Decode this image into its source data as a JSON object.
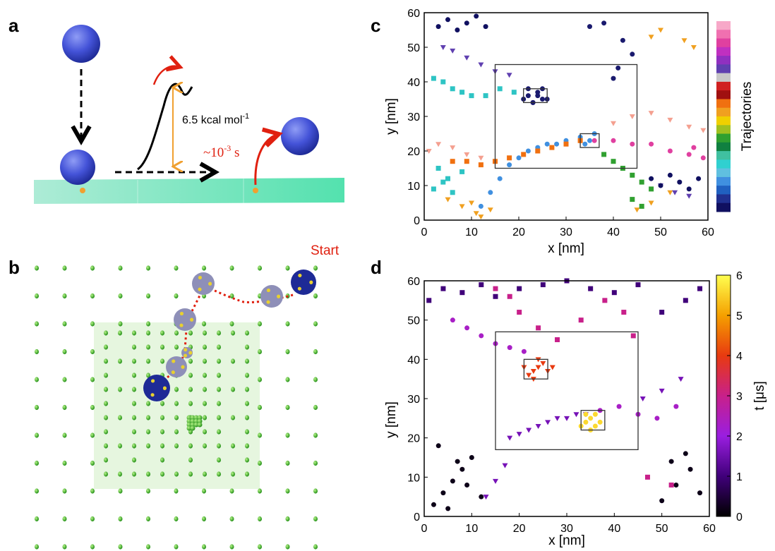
{
  "panel_labels": {
    "a": "a",
    "b": "b",
    "c": "c",
    "d": "d"
  },
  "diagram_a": {
    "energy": "6.5 kcal mol",
    "energy_sup": "-1",
    "time": "~10",
    "time_sup": "-3",
    "time_unit": " s"
  },
  "diagram_b": {
    "start": "Start"
  },
  "chart_data": [
    {
      "type": "scatter",
      "xlabel": "x [nm]",
      "ylabel": "y [nm]",
      "xlim": [
        0,
        60
      ],
      "ylim": [
        0,
        60
      ],
      "xticks": [
        0,
        10,
        20,
        30,
        40,
        50,
        60
      ],
      "yticks": [
        0,
        10,
        20,
        30,
        40,
        50,
        60
      ],
      "colorbar_label": "Trajectories",
      "colorbar_colors": [
        "#f7a8c8",
        "#f070b0",
        "#e040a0",
        "#c030c0",
        "#9030c0",
        "#6040b0",
        "#c8c8c8",
        "#d02020",
        "#a01010",
        "#f07010",
        "#f0a020",
        "#f0d000",
        "#a0c020",
        "#30a030",
        "#108040",
        "#40c0a0",
        "#30d0d0",
        "#60c0e0",
        "#4090e0",
        "#2060c0",
        "#203090",
        "#101060"
      ],
      "boxes": [
        {
          "x": [
            15,
            45
          ],
          "y": [
            15,
            45
          ]
        },
        {
          "x": [
            21,
            26
          ],
          "y": [
            34,
            38
          ]
        },
        {
          "x": [
            33,
            37
          ],
          "y": [
            21,
            25
          ]
        }
      ],
      "series": [
        {
          "color": "#1a1a6e",
          "x": [
            21,
            22,
            23,
            24,
            25,
            22,
            24,
            26,
            23,
            25,
            35,
            38,
            42,
            44,
            41,
            40
          ],
          "y": [
            35,
            36,
            34,
            37,
            38,
            38,
            36,
            35,
            34,
            35,
            56,
            57,
            52,
            48,
            44,
            41
          ]
        },
        {
          "color": "#2ec4c4",
          "x": [
            2,
            4,
            6,
            8,
            10,
            13,
            16,
            19,
            3,
            5,
            8,
            2,
            4,
            6
          ],
          "y": [
            41,
            40,
            38,
            37,
            36,
            36,
            38,
            37,
            15,
            12,
            14,
            9,
            11,
            8
          ]
        },
        {
          "color": "#f0a020",
          "x": [
            5,
            8,
            10,
            11,
            14,
            12,
            45,
            48,
            52,
            55,
            57,
            48,
            50
          ],
          "y": [
            6,
            4,
            5,
            2,
            3,
            1,
            3,
            5,
            8,
            52,
            50,
            53,
            55
          ]
        },
        {
          "color": "#4090e0",
          "x": [
            12,
            14,
            16,
            18,
            20,
            22,
            24,
            26,
            28,
            30,
            33,
            35,
            36,
            34
          ],
          "y": [
            4,
            8,
            12,
            16,
            18,
            20,
            21,
            22,
            22,
            23,
            24,
            23,
            25,
            22
          ]
        },
        {
          "color": "#f07010",
          "x": [
            6,
            9,
            12,
            15,
            18,
            21,
            24,
            27,
            30,
            33
          ],
          "y": [
            17,
            17,
            16,
            17,
            18,
            19,
            20,
            21,
            22,
            23
          ]
        },
        {
          "color": "#f4a090",
          "x": [
            1,
            3,
            6,
            9,
            12,
            40,
            44,
            48,
            52,
            56,
            59
          ],
          "y": [
            20,
            22,
            21,
            19,
            18,
            28,
            30,
            31,
            29,
            27,
            26
          ]
        },
        {
          "color": "#e040a0",
          "x": [
            36,
            40,
            44,
            48,
            52,
            56,
            59,
            57
          ],
          "y": [
            23,
            23,
            22,
            22,
            20,
            19,
            18,
            21
          ]
        },
        {
          "color": "#30a030",
          "x": [
            38,
            40,
            42,
            44,
            46,
            48,
            44,
            46
          ],
          "y": [
            19,
            17,
            15,
            13,
            11,
            9,
            6,
            4
          ]
        },
        {
          "color": "#6040b0",
          "x": [
            4,
            6,
            9,
            12,
            15,
            18,
            50,
            53,
            56
          ],
          "y": [
            50,
            49,
            47,
            45,
            43,
            42,
            10,
            8,
            7
          ]
        },
        {
          "color": "#101060",
          "x": [
            3,
            5,
            7,
            9,
            11,
            13,
            48,
            50,
            52,
            54,
            56,
            58
          ],
          "y": [
            56,
            58,
            55,
            57,
            59,
            56,
            12,
            10,
            13,
            11,
            9,
            12
          ]
        }
      ]
    },
    {
      "type": "scatter",
      "xlabel": "x [nm]",
      "ylabel": "y [nm]",
      "xlim": [
        0,
        60
      ],
      "ylim": [
        0,
        60
      ],
      "xticks": [
        0,
        10,
        20,
        30,
        40,
        50,
        60
      ],
      "yticks": [
        0,
        10,
        20,
        30,
        40,
        50,
        60
      ],
      "colorbar_label": "t [μs]",
      "clim": [
        0,
        6
      ],
      "cticks": [
        0,
        1,
        2,
        3,
        4,
        5,
        6
      ],
      "colormap": [
        "#000000",
        "#40007a",
        "#9a1ee0",
        "#c8208a",
        "#e83a10",
        "#f5a000",
        "#ffff50"
      ],
      "boxes": [
        {
          "x": [
            15,
            45
          ],
          "y": [
            17,
            47
          ]
        },
        {
          "x": [
            21,
            26
          ],
          "y": [
            35,
            40
          ]
        },
        {
          "x": [
            33,
            38
          ],
          "y": [
            22,
            27
          ]
        }
      ],
      "series": [
        {
          "t": 0.2,
          "x": [
            2,
            4,
            6,
            8,
            10,
            12,
            3,
            5,
            7,
            9,
            50,
            53,
            56,
            58,
            52,
            55
          ],
          "y": [
            3,
            6,
            9,
            12,
            15,
            5,
            18,
            2,
            14,
            8,
            4,
            8,
            12,
            6,
            14,
            16
          ]
        },
        {
          "t": 1.0,
          "x": [
            1,
            4,
            8,
            12,
            15,
            20,
            25,
            30,
            35,
            40,
            45,
            50,
            55,
            58
          ],
          "y": [
            55,
            58,
            57,
            59,
            56,
            58,
            59,
            60,
            58,
            57,
            59,
            52,
            55,
            58
          ]
        },
        {
          "t": 1.6,
          "x": [
            18,
            20,
            22,
            24,
            26,
            28,
            30,
            32,
            34,
            13,
            15,
            17,
            46,
            50,
            54
          ],
          "y": [
            20,
            21,
            22,
            23,
            24,
            25,
            25,
            26,
            26,
            5,
            9,
            13,
            30,
            32,
            35
          ]
        },
        {
          "t": 2.3,
          "x": [
            6,
            9,
            12,
            15,
            18,
            21,
            37,
            41,
            45,
            49,
            53
          ],
          "y": [
            50,
            48,
            46,
            44,
            43,
            42,
            27,
            28,
            26,
            25,
            28
          ]
        },
        {
          "t": 3.0,
          "x": [
            15,
            18,
            20,
            24,
            28,
            33,
            38,
            42,
            44,
            47,
            52
          ],
          "y": [
            58,
            56,
            52,
            48,
            45,
            50,
            55,
            52,
            46,
            10,
            8
          ]
        },
        {
          "t": 4.0,
          "x": [
            22,
            23,
            24,
            25,
            26,
            21,
            24,
            27,
            23
          ],
          "y": [
            36,
            37,
            38,
            39,
            37,
            38,
            40,
            38,
            35
          ]
        },
        {
          "t": 5.6,
          "x": [
            33,
            34,
            35,
            36,
            37,
            34,
            36,
            35
          ],
          "y": [
            23,
            24,
            25,
            26,
            24,
            26,
            23,
            22
          ]
        }
      ]
    }
  ]
}
